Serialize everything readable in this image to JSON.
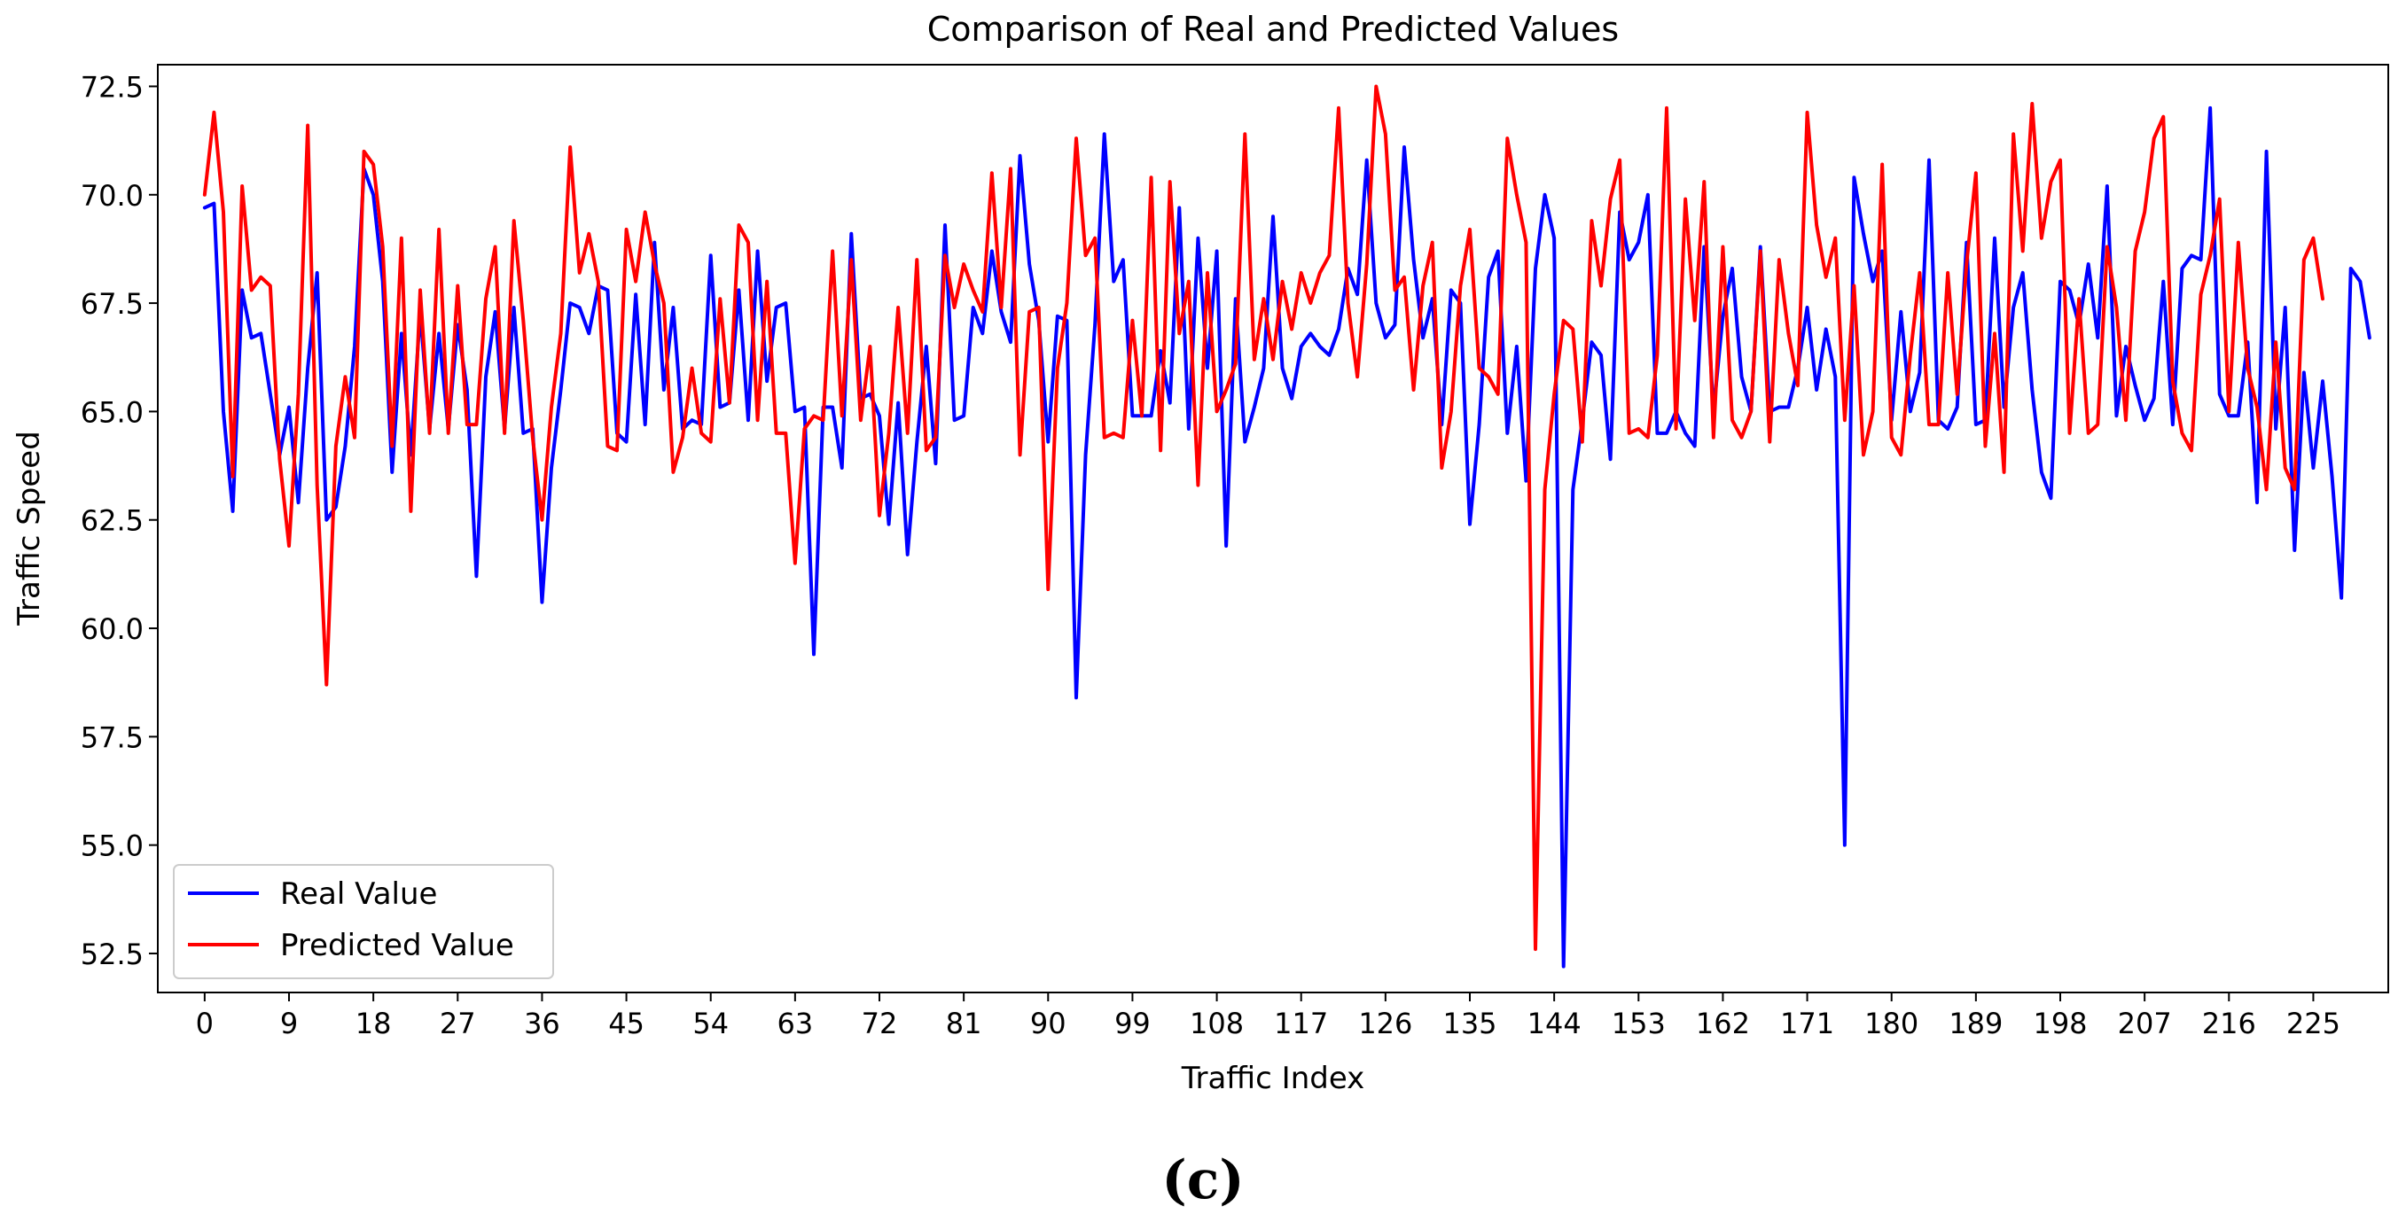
{
  "chart_data": {
    "type": "line",
    "title": "Comparison of Real and Predicted Values",
    "xlabel": "Traffic Index",
    "ylabel": "Traffic Speed",
    "xlim": [
      -5,
      233
    ],
    "ylim": [
      51.6,
      73.0
    ],
    "x_ticks": [
      0,
      9,
      18,
      27,
      36,
      45,
      54,
      63,
      72,
      81,
      90,
      99,
      108,
      117,
      126,
      135,
      144,
      153,
      162,
      171,
      180,
      189,
      198,
      207,
      216,
      225
    ],
    "y_ticks": [
      52.5,
      55.0,
      57.5,
      60.0,
      62.5,
      65.0,
      67.5,
      70.0,
      72.5
    ],
    "legend_position": "lower-left",
    "grid": false,
    "series": [
      {
        "name": "Real Value",
        "color": "#0000ff",
        "values": [
          69.7,
          69.8,
          65.0,
          62.7,
          67.8,
          66.7,
          66.8,
          65.4,
          64.0,
          65.1,
          62.9,
          66.0,
          68.2,
          62.5,
          62.8,
          64.2,
          66.5,
          70.6,
          70.0,
          68.0,
          63.6,
          66.8,
          64.0,
          67.3,
          64.6,
          66.8,
          64.6,
          67.0,
          65.5,
          61.2,
          65.8,
          67.3,
          64.6,
          67.4,
          64.5,
          64.6,
          60.6,
          63.7,
          65.5,
          67.5,
          67.4,
          66.8,
          67.9,
          67.8,
          64.5,
          64.3,
          67.7,
          64.7,
          68.9,
          65.5,
          67.4,
          64.6,
          64.8,
          64.7,
          68.6,
          65.1,
          65.2,
          67.8,
          64.8,
          68.7,
          65.7,
          67.4,
          67.5,
          65.0,
          65.1,
          59.4,
          65.1,
          65.1,
          63.7,
          69.1,
          65.3,
          65.4,
          64.9,
          62.4,
          65.2,
          61.7,
          64.3,
          66.5,
          63.8,
          69.3,
          64.8,
          64.9,
          67.4,
          66.8,
          68.7,
          67.3,
          66.6,
          70.9,
          68.4,
          67.1,
          64.3,
          67.2,
          67.1,
          58.4,
          64.0,
          67.0,
          71.4,
          68.0,
          68.5,
          64.9,
          64.9,
          64.9,
          66.4,
          65.2,
          69.7,
          64.6,
          69.0,
          66.0,
          68.7,
          61.9,
          67.6,
          64.3,
          65.1,
          66.0,
          69.5,
          66.0,
          65.3,
          66.5,
          66.8,
          66.5,
          66.3,
          66.9,
          68.3,
          67.7,
          70.8,
          67.5,
          66.7,
          67.0,
          71.1,
          68.5,
          66.7,
          67.6,
          64.7,
          67.8,
          67.5,
          62.4,
          64.7,
          68.1,
          68.7,
          64.5,
          66.5,
          63.4,
          68.3,
          70.0,
          69.0,
          52.2,
          63.2,
          64.8,
          66.6,
          66.3,
          63.9,
          69.6,
          68.5,
          68.9,
          70.0,
          64.5,
          64.5,
          65.0,
          64.5,
          64.2,
          68.8,
          65.0,
          67.2,
          68.3,
          65.8,
          65.0,
          68.8,
          65.0,
          65.1,
          65.1,
          66.0,
          67.4,
          65.5,
          66.9,
          65.8,
          55.0,
          70.4,
          69.1,
          68.0,
          68.7,
          64.8,
          67.3,
          65.0,
          65.9,
          70.8,
          64.8,
          64.6,
          65.1,
          68.9,
          64.7,
          64.8,
          69.0,
          65.1,
          67.4,
          68.2,
          65.5,
          63.6,
          63.0,
          68.0,
          67.8,
          67.0,
          68.4,
          66.7,
          70.2,
          64.9,
          66.5,
          65.6,
          64.8,
          65.3,
          68.0,
          64.7,
          68.3,
          68.6,
          68.5,
          72.0,
          65.4,
          64.9,
          64.9,
          66.6,
          62.9,
          71.0,
          64.6,
          67.4,
          61.8,
          65.9,
          63.7,
          65.7,
          63.5,
          60.7,
          68.3,
          68.0,
          66.7
        ]
      },
      {
        "name": "Predicted Value",
        "color": "#ff0000",
        "values": [
          70.0,
          71.9,
          69.6,
          63.5,
          70.2,
          67.8,
          68.1,
          67.9,
          63.9,
          61.9,
          65.4,
          71.6,
          63.3,
          58.7,
          64.2,
          65.8,
          64.4,
          71.0,
          70.7,
          68.8,
          64.2,
          69.0,
          62.7,
          67.8,
          64.5,
          69.2,
          64.5,
          67.9,
          64.7,
          64.7,
          67.6,
          68.8,
          64.5,
          69.4,
          67.1,
          64.4,
          62.5,
          65.1,
          66.8,
          71.1,
          68.2,
          69.1,
          68.0,
          64.2,
          64.1,
          69.2,
          68.0,
          69.6,
          68.4,
          67.5,
          63.6,
          64.4,
          66.0,
          64.5,
          64.3,
          67.6,
          65.2,
          69.3,
          68.9,
          64.8,
          68.0,
          64.5,
          64.5,
          61.5,
          64.6,
          64.9,
          64.8,
          68.7,
          64.9,
          68.5,
          64.8,
          66.5,
          62.6,
          64.5,
          67.4,
          64.5,
          68.5,
          64.1,
          64.4,
          68.6,
          67.4,
          68.4,
          67.8,
          67.3,
          70.5,
          67.4,
          70.6,
          64.0,
          67.3,
          67.4,
          60.9,
          66.0,
          67.5,
          71.3,
          68.6,
          69.0,
          64.4,
          64.5,
          64.4,
          67.1,
          64.9,
          70.4,
          64.1,
          70.3,
          66.8,
          68.0,
          63.3,
          68.2,
          65.0,
          65.5,
          66.1,
          71.4,
          66.2,
          67.6,
          66.2,
          68.0,
          66.9,
          68.2,
          67.5,
          68.2,
          68.6,
          72.0,
          67.5,
          65.8,
          68.4,
          72.5,
          71.4,
          67.8,
          68.1,
          65.5,
          67.9,
          68.9,
          63.7,
          65.0,
          67.9,
          69.2,
          66.0,
          65.8,
          65.4,
          71.3,
          70.0,
          68.9,
          52.6,
          63.2,
          65.4,
          67.1,
          66.9,
          64.3,
          69.4,
          67.9,
          69.9,
          70.8,
          64.5,
          64.6,
          64.4,
          66.3,
          72.0,
          64.6,
          69.9,
          67.1,
          70.3,
          64.4,
          68.8,
          64.8,
          64.4,
          65.0,
          68.7,
          64.3,
          68.5,
          66.8,
          65.6,
          71.9,
          69.3,
          68.1,
          69.0,
          64.8,
          67.9,
          64.0,
          65.0,
          70.7,
          64.4,
          64.0,
          66.3,
          68.2,
          64.7,
          64.7,
          68.2,
          65.4,
          68.4,
          70.5,
          64.2,
          66.8,
          63.6,
          71.4,
          68.7,
          72.1,
          69.0,
          70.3,
          70.8,
          64.5,
          67.6,
          64.5,
          64.7,
          68.8,
          67.4,
          64.8,
          68.7,
          69.6,
          71.3,
          71.8,
          65.7,
          64.5,
          64.1,
          67.7,
          68.6,
          69.9,
          65.0,
          68.9,
          66.0,
          65.1,
          63.2,
          66.6,
          63.7,
          63.2,
          68.5,
          69.0,
          67.6
        ]
      }
    ]
  },
  "caption": "(c)"
}
